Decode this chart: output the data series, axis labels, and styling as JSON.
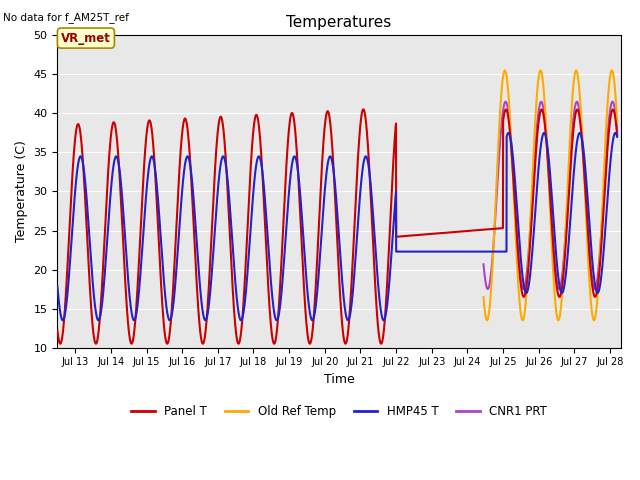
{
  "title": "Temperatures",
  "xlabel": "Time",
  "ylabel": "Temperature (C)",
  "top_left_text": "No data for f_AM25T_ref",
  "annotation_text": "VR_met",
  "ylim": [
    10,
    50
  ],
  "xlim": [
    12.5,
    28.3
  ],
  "background_color": "#e8e8e8",
  "legend_entries": [
    "Panel T",
    "Old Ref Temp",
    "HMP45 T",
    "CNR1 PRT"
  ],
  "line_colors": {
    "panel_t": "#cc0000",
    "old_ref": "#ffaa00",
    "hmp45": "#2222cc",
    "cnr1": "#aa44cc"
  },
  "x_tick_labels": [
    "Jul 13",
    "Jul 14",
    "Jul 15",
    "Jul 16",
    "Jul 17",
    "Jul 18",
    "Jul 19",
    "Jul 20",
    "Jul 21",
    "Jul 22",
    "Jul 23",
    "Jul 24",
    "Jul 25",
    "Jul 26",
    "Jul 27",
    "Jul 28"
  ],
  "x_tick_positions": [
    13,
    14,
    15,
    16,
    17,
    18,
    19,
    20,
    21,
    22,
    23,
    24,
    25,
    26,
    27,
    28
  ],
  "y_ticks": [
    10,
    15,
    20,
    25,
    30,
    35,
    40,
    45,
    50
  ]
}
